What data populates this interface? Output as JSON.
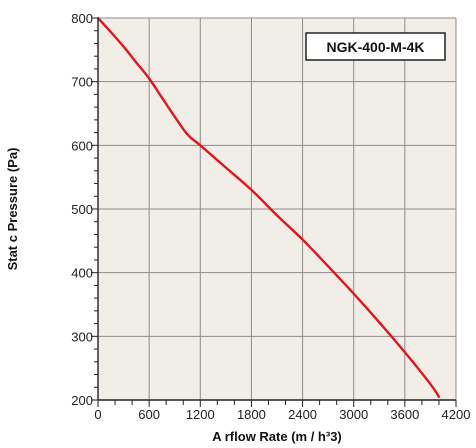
{
  "chart_data": {
    "type": "line",
    "xlabel": "A rflow Rate (m / h³3)",
    "ylabel": "Stat c Pressure (Pa)",
    "xlim": [
      0,
      4200
    ],
    "ylim": [
      200,
      800
    ],
    "x_ticks": [
      0,
      600,
      1200,
      1800,
      2400,
      3000,
      3600,
      4200
    ],
    "x_tick_labels": [
      "0",
      "600",
      "1200",
      "1800",
      "2400",
      "3000",
      "3600",
      "4200"
    ],
    "y_ticks": [
      200,
      300,
      400,
      500,
      600,
      700,
      800
    ],
    "y_tick_labels": [
      "200",
      "300",
      "400",
      "500",
      "600",
      "700",
      "800"
    ],
    "annotation": "NGK-400-M-4K",
    "grid": true,
    "series": [
      {
        "x": [
          0,
          150,
          300,
          450,
          600,
          750,
          900,
          1050,
          1200,
          1500,
          1800,
          2100,
          2400,
          2700,
          3000,
          3300,
          3600,
          3900,
          4000
        ],
        "y": [
          800,
          778,
          755,
          730,
          705,
          675,
          645,
          617,
          600,
          565,
          530,
          490,
          452,
          410,
          367,
          322,
          275,
          225,
          205
        ]
      }
    ],
    "colors": {
      "plot_background": "#f0eee6",
      "grid": "#8c8c8c",
      "curve": "#e8121a",
      "axis": "#222222"
    }
  }
}
